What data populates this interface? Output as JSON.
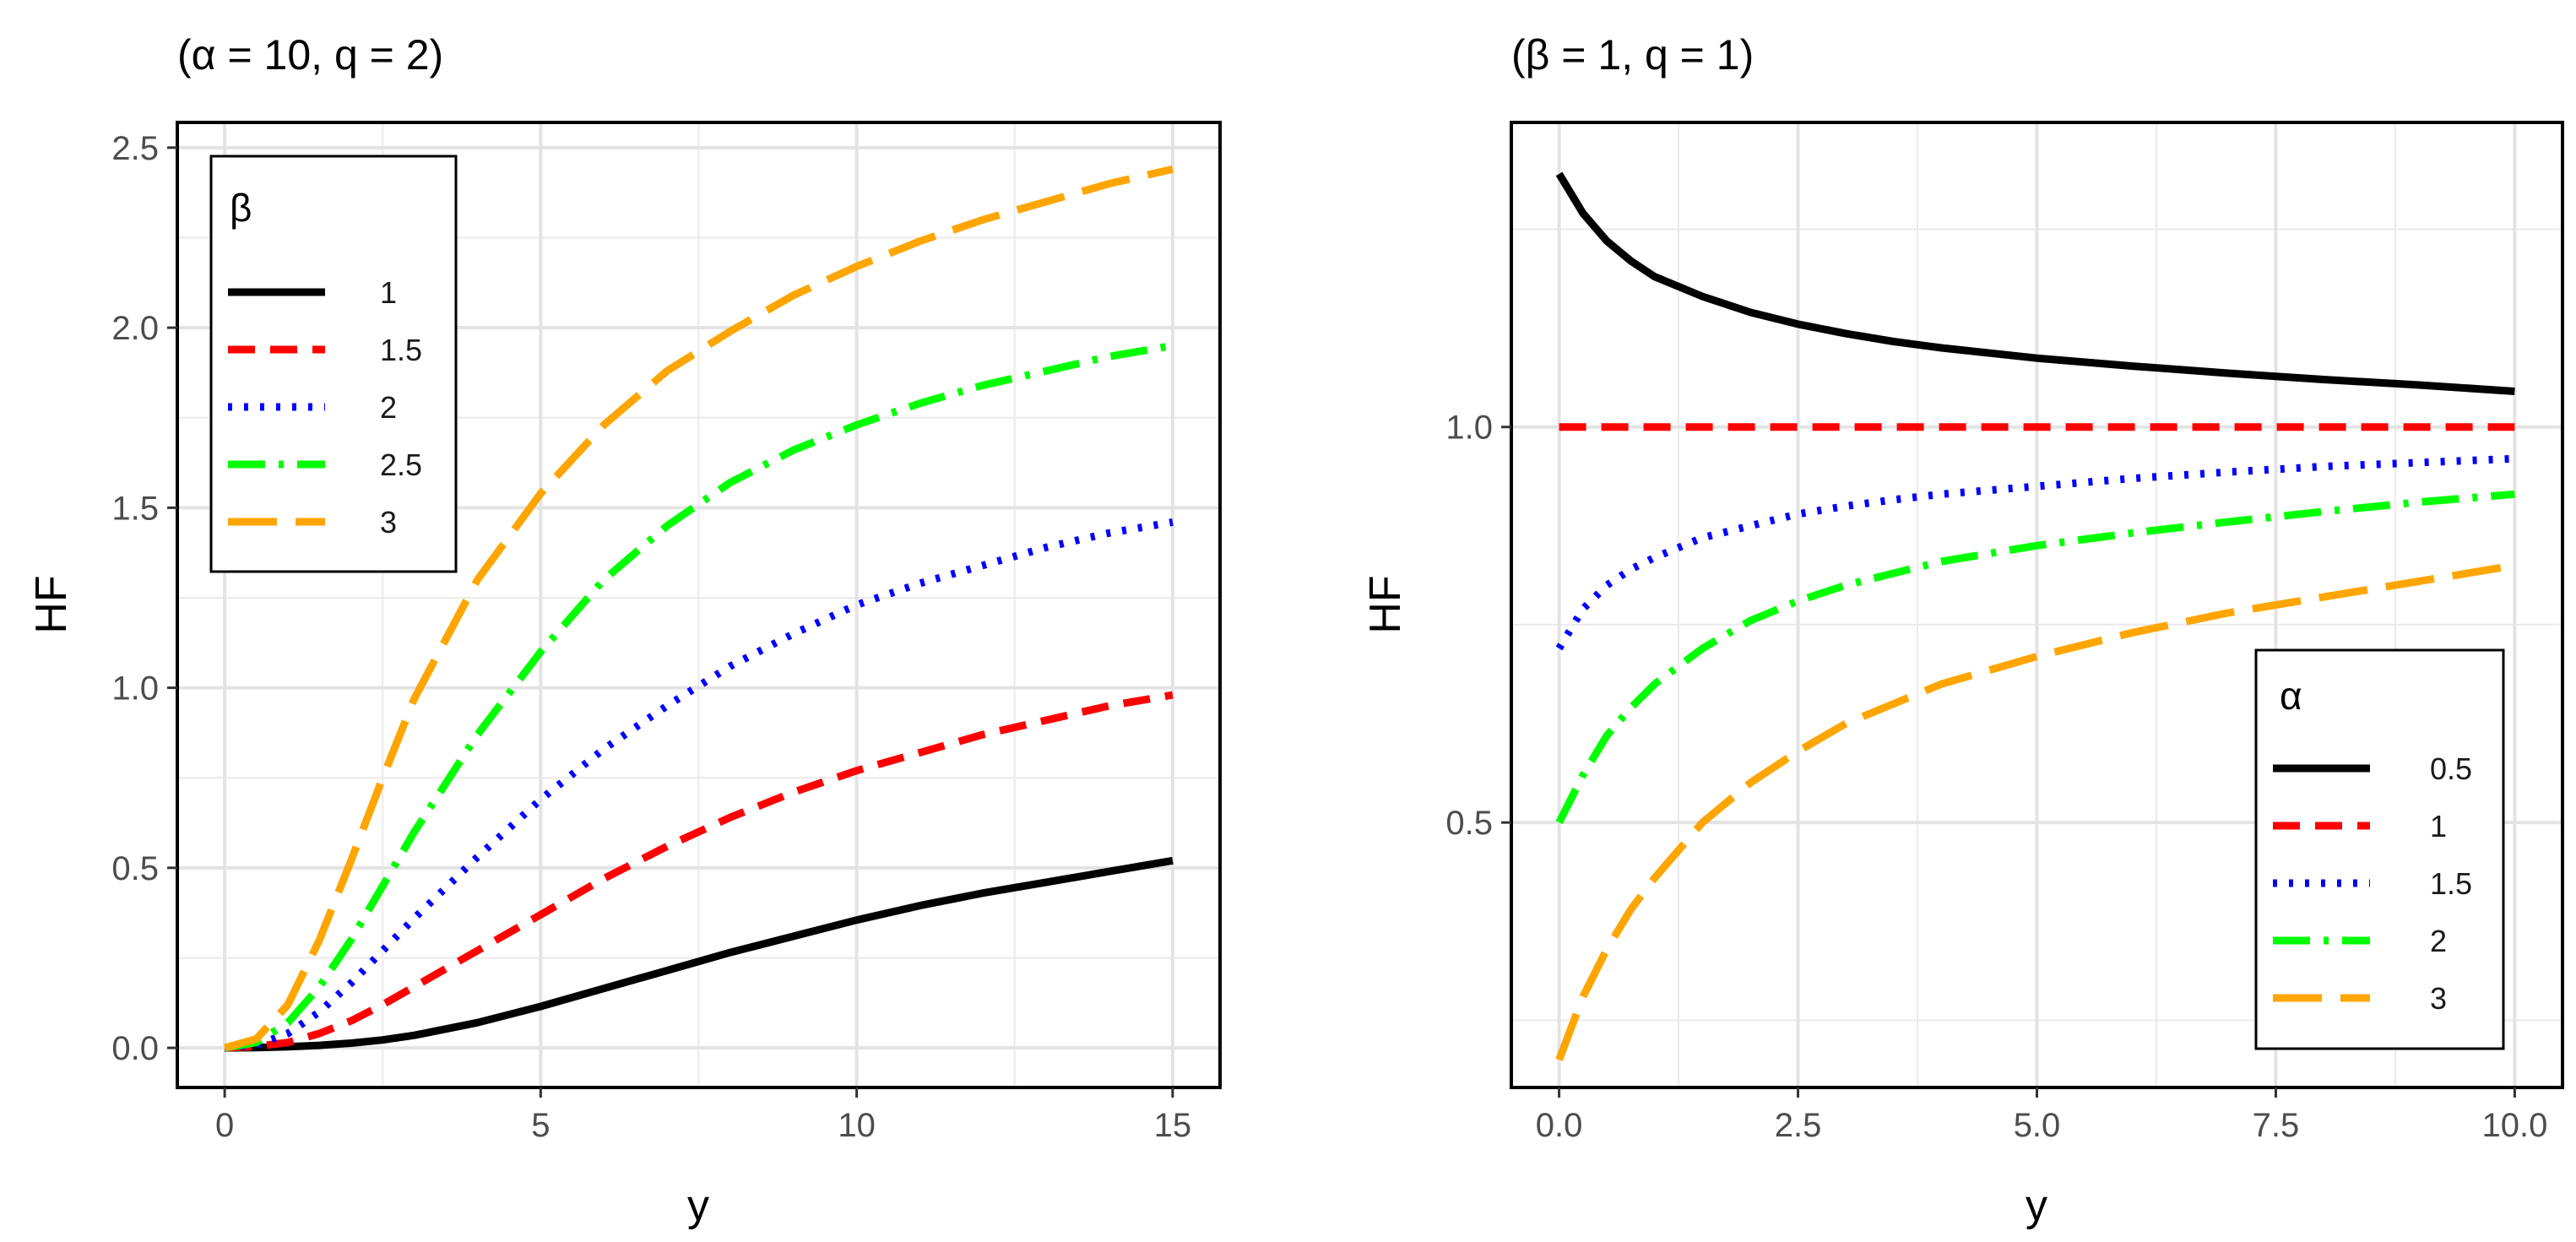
{
  "chart_data": [
    {
      "type": "line",
      "title": "(α = 10, q = 2)",
      "xlabel": "y",
      "ylabel": "HF",
      "xlim": [
        -0.75,
        15.75
      ],
      "ylim": [
        -0.11,
        2.57
      ],
      "xticks": [
        0,
        5,
        10,
        15
      ],
      "xtick_labels": [
        "0",
        "5",
        "10",
        "15"
      ],
      "yticks": [
        0,
        0.5,
        1,
        1.5,
        2,
        2.5
      ],
      "ytick_labels": [
        "0.0",
        "0.5",
        "1.0",
        "1.5",
        "2.0",
        "2.5"
      ],
      "grid": true,
      "legend": {
        "title": "β",
        "position": "top-left"
      },
      "x": [
        0,
        0.5,
        1,
        1.5,
        2,
        2.5,
        3,
        4,
        5,
        6,
        7,
        8,
        9,
        10,
        11,
        12,
        13,
        14,
        15
      ],
      "series": [
        {
          "name": "1",
          "color": "#000000",
          "dash": "solid",
          "values": [
            0,
            0.001,
            0.003,
            0.007,
            0.013,
            0.022,
            0.035,
            0.07,
            0.115,
            0.165,
            0.215,
            0.265,
            0.31,
            0.355,
            0.395,
            0.43,
            0.46,
            0.49,
            0.52
          ]
        },
        {
          "name": "1.5",
          "color": "#ff0000",
          "dash": "dashed",
          "values": [
            0,
            0.004,
            0.015,
            0.04,
            0.075,
            0.12,
            0.17,
            0.27,
            0.37,
            0.47,
            0.56,
            0.64,
            0.71,
            0.77,
            0.82,
            0.87,
            0.91,
            0.95,
            0.98
          ]
        },
        {
          "name": "2",
          "color": "#0000ff",
          "dash": "dotted",
          "values": [
            0,
            0.008,
            0.04,
            0.1,
            0.18,
            0.27,
            0.36,
            0.53,
            0.69,
            0.83,
            0.95,
            1.06,
            1.15,
            1.23,
            1.29,
            1.34,
            1.39,
            1.43,
            1.46
          ]
        },
        {
          "name": "2.5",
          "color": "#00ff00",
          "dash": "dotdash",
          "values": [
            0,
            0.015,
            0.07,
            0.17,
            0.3,
            0.45,
            0.6,
            0.87,
            1.1,
            1.3,
            1.45,
            1.57,
            1.66,
            1.73,
            1.79,
            1.84,
            1.88,
            1.92,
            1.95
          ]
        },
        {
          "name": "3",
          "color": "#ffa500",
          "dash": "longdash",
          "values": [
            0,
            0.025,
            0.12,
            0.3,
            0.52,
            0.75,
            0.97,
            1.3,
            1.54,
            1.73,
            1.88,
            1.99,
            2.09,
            2.17,
            2.24,
            2.3,
            2.35,
            2.4,
            2.44
          ]
        }
      ]
    },
    {
      "type": "line",
      "title": "(β = 1, q = 1)",
      "xlabel": "y",
      "ylabel": "HF",
      "xlim": [
        -0.5,
        10.5
      ],
      "ylim": [
        0.165,
        1.385
      ],
      "xticks": [
        0,
        2.5,
        5,
        7.5,
        10
      ],
      "xtick_labels": [
        "0.0",
        "2.5",
        "5.0",
        "7.5",
        "10.0"
      ],
      "yticks": [
        0.5,
        1.0
      ],
      "ytick_labels": [
        "0.5",
        "1.0"
      ],
      "grid": true,
      "legend": {
        "title": "α",
        "position": "bottom-right"
      },
      "x": [
        0,
        0.25,
        0.5,
        0.75,
        1,
        1.5,
        2,
        2.5,
        3,
        3.5,
        4,
        5,
        6,
        7,
        8,
        9,
        10
      ],
      "series": [
        {
          "name": "0.5",
          "color": "#000000",
          "dash": "solid",
          "values": [
            1.32,
            1.27,
            1.235,
            1.21,
            1.19,
            1.165,
            1.145,
            1.13,
            1.118,
            1.108,
            1.1,
            1.087,
            1.077,
            1.068,
            1.06,
            1.053,
            1.045
          ]
        },
        {
          "name": "1",
          "color": "#ff0000",
          "dash": "dashed",
          "values": [
            1.0,
            1.0,
            1.0,
            1.0,
            1.0,
            1.0,
            1.0,
            1.0,
            1.0,
            1.0,
            1.0,
            1.0,
            1.0,
            1.0,
            1.0,
            1.0,
            1.0
          ]
        },
        {
          "name": "1.5",
          "color": "#0000ff",
          "dash": "dotted",
          "values": [
            0.72,
            0.77,
            0.8,
            0.82,
            0.835,
            0.86,
            0.875,
            0.89,
            0.9,
            0.908,
            0.915,
            0.925,
            0.935,
            0.943,
            0.95,
            0.955,
            0.96
          ]
        },
        {
          "name": "2",
          "color": "#00ff00",
          "dash": "dotdash",
          "values": [
            0.5,
            0.56,
            0.61,
            0.645,
            0.675,
            0.72,
            0.755,
            0.78,
            0.8,
            0.815,
            0.83,
            0.85,
            0.866,
            0.88,
            0.893,
            0.905,
            0.915
          ]
        },
        {
          "name": "3",
          "color": "#ffa500",
          "dash": "longdash",
          "values": [
            0.2,
            0.28,
            0.34,
            0.39,
            0.43,
            0.5,
            0.55,
            0.59,
            0.625,
            0.65,
            0.675,
            0.71,
            0.74,
            0.765,
            0.785,
            0.805,
            0.825
          ]
        }
      ]
    }
  ]
}
